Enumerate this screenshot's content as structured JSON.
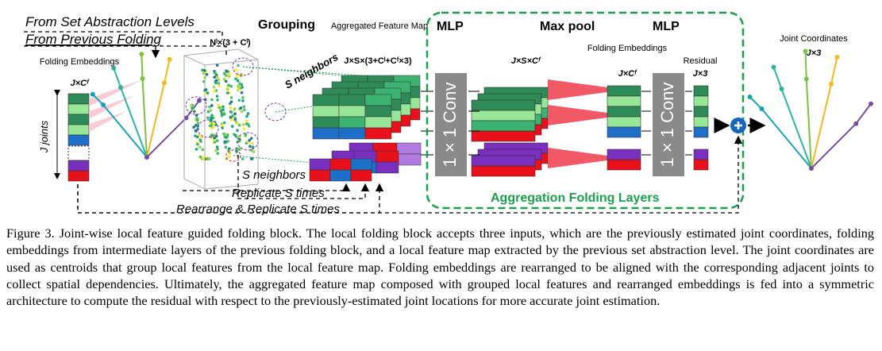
{
  "figure": {
    "labels": {
      "from_sa": "From Set Abstraction Levels",
      "from_prev": "From Previous Folding",
      "folding_embeddings_left": "Folding Embeddings",
      "jcf_left": "J×Cᶠ",
      "j_joints": "J joints",
      "grouping": "Grouping",
      "points_dim": "Nˡ×(3 + Cˡ)",
      "s_neighbors_top": "S neighbors",
      "aggregated": "Aggregated Feature Map",
      "agg_dim": "J×S×(3+Cˡ+Cᶠ×3)",
      "mlp1": "MLP",
      "maxpool": "Max pool",
      "mlp2": "MLP",
      "jscf": "J×S×Cᶠ",
      "folding_embeddings_right": "Folding Embeddings",
      "jcf_right": "J×Cᶠ",
      "residual": "Residual",
      "j3_residual": "J×3",
      "conv1": "1 × 1 Conv",
      "conv2": "1 × 1 Conv",
      "joint_coords": "Joint Coordinates",
      "j3_joint": "J×3",
      "s_neighbors_bottom": "S neighbors",
      "replicate": "Replicate S times",
      "rearrange": "Rearrange & Replicate S times",
      "aggregation_layers": "Aggregation Folding Layers"
    },
    "caption": "Figure 3. Joint-wise local feature guided folding block. The local folding block accepts three inputs, which are the previously estimated joint coordinates, folding embeddings from intermediate layers of the previous folding block, and a local feature map extracted by the previous set abstraction level. The joint coordinates are used as centroids that group local features from the local feature map. Folding embeddings are rearranged to be aligned with the corresponding adjacent joints to collect spatial dependencies. Ultimately, the aggregated feature map composed with grouped local features and rearranged embeddings is fed into a symmetric architecture to compute the residual with respect to the previously-estimated joint locations for more accurate joint estimation."
  }
}
